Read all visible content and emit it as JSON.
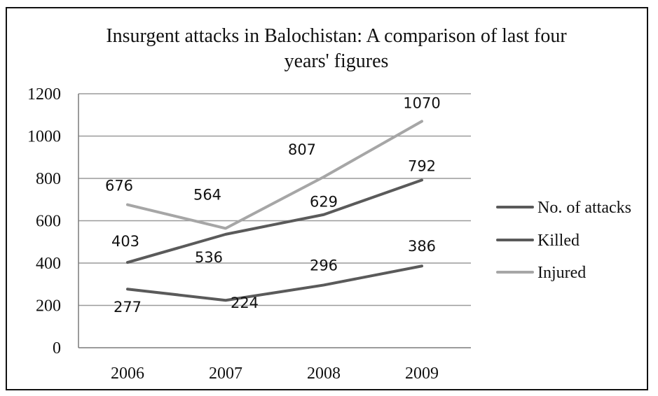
{
  "chart_data": {
    "type": "line",
    "title": "Insurgent attacks in Balochistan: A comparison of last four years' figures",
    "title_lines": [
      "Insurgent attacks in Balochistan: A comparison of last four",
      "years' figures"
    ],
    "categories": [
      "2006",
      "2007",
      "2008",
      "2009"
    ],
    "ylim": [
      0,
      1200
    ],
    "yticks": [
      0,
      200,
      400,
      600,
      800,
      1000,
      1200
    ],
    "grid": true,
    "legend_position": "right",
    "series": [
      {
        "name": "No. of attacks",
        "values": [
          277,
          224,
          296,
          386
        ],
        "color": "#5a5a5a"
      },
      {
        "name": "Killed",
        "values": [
          403,
          536,
          629,
          792
        ],
        "color": "#5a5a5a"
      },
      {
        "name": "Injured",
        "values": [
          676,
          564,
          807,
          1070
        ],
        "color": "#a6a6a6"
      }
    ]
  }
}
